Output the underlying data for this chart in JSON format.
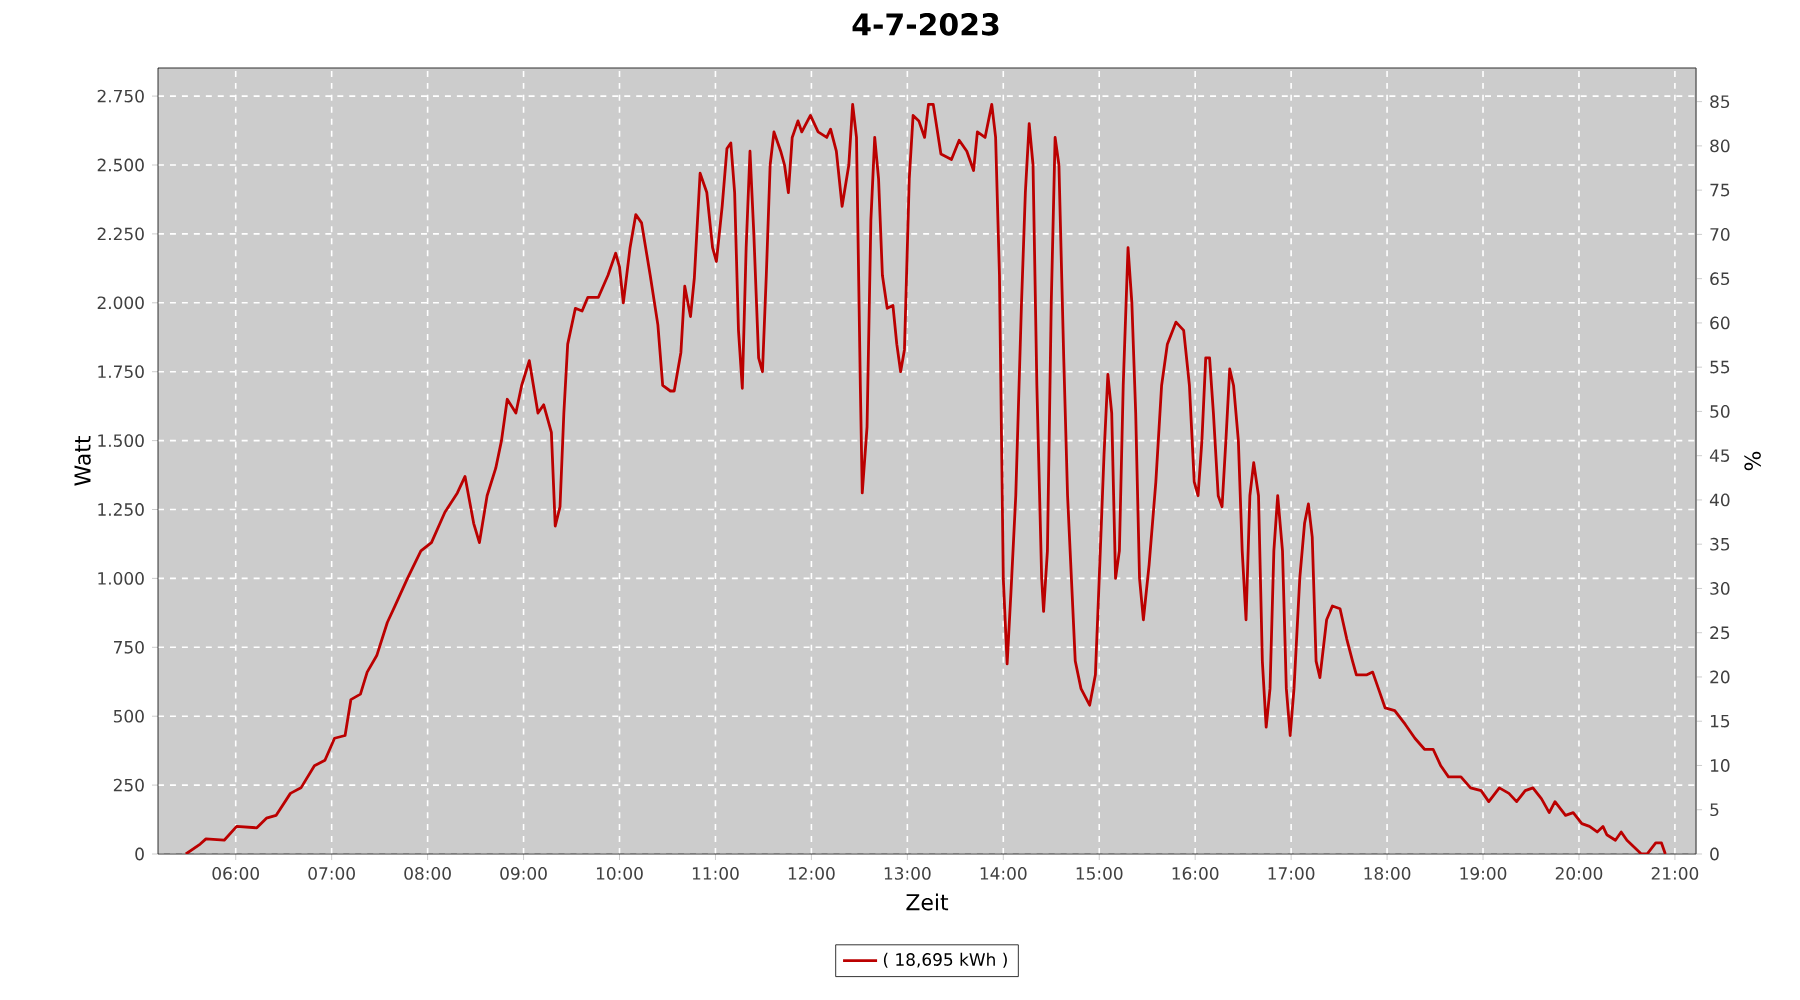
{
  "chart_data": {
    "type": "line",
    "title": "4-7-2023",
    "xlabel": "Zeit",
    "ylabel": "Watt",
    "y2label": "%",
    "x": [
      5.48,
      5.63,
      5.69,
      5.88,
      6.01,
      6.22,
      6.32,
      6.42,
      6.57,
      6.68,
      6.82,
      6.93,
      7.03,
      7.14,
      7.2,
      7.3,
      7.37,
      7.47,
      7.58,
      7.66,
      7.79,
      7.93,
      8.04,
      8.18,
      8.31,
      8.39,
      8.48,
      8.54,
      8.62,
      8.71,
      8.77,
      8.83,
      8.92,
      8.98,
      9.06,
      9.15,
      9.21,
      9.29,
      9.33,
      9.38,
      9.42,
      9.46,
      9.54,
      9.61,
      9.67,
      9.78,
      9.88,
      9.96,
      10.0,
      10.04,
      10.11,
      10.17,
      10.23,
      10.32,
      10.4,
      10.45,
      10.53,
      10.57,
      10.64,
      10.68,
      10.74,
      10.78,
      10.84,
      10.91,
      10.97,
      11.01,
      11.07,
      11.12,
      11.16,
      11.2,
      11.24,
      11.28,
      11.32,
      11.36,
      11.4,
      11.45,
      11.49,
      11.53,
      11.57,
      11.61,
      11.68,
      11.72,
      11.76,
      11.8,
      11.86,
      11.9,
      11.99,
      12.07,
      12.16,
      12.2,
      12.26,
      12.32,
      12.39,
      12.43,
      12.47,
      12.51,
      12.53,
      12.58,
      12.62,
      12.66,
      12.7,
      12.74,
      12.79,
      12.85,
      12.89,
      12.93,
      12.97,
      13.02,
      13.06,
      13.12,
      13.18,
      13.22,
      13.27,
      13.35,
      13.46,
      13.54,
      13.62,
      13.69,
      13.73,
      13.81,
      13.88,
      13.92,
      13.96,
      14.0,
      14.04,
      14.08,
      14.13,
      14.19,
      14.23,
      14.27,
      14.31,
      14.35,
      14.4,
      14.42,
      14.46,
      14.5,
      14.54,
      14.58,
      14.63,
      14.67,
      14.71,
      14.75,
      14.81,
      14.9,
      14.96,
      15.0,
      15.05,
      15.09,
      15.13,
      15.17,
      15.21,
      15.25,
      15.3,
      15.34,
      15.38,
      15.42,
      15.46,
      15.52,
      15.59,
      15.65,
      15.71,
      15.8,
      15.88,
      15.94,
      15.99,
      16.03,
      16.07,
      16.11,
      16.15,
      16.19,
      16.24,
      16.28,
      16.32,
      16.36,
      16.4,
      16.45,
      16.49,
      16.53,
      16.57,
      16.61,
      16.66,
      16.7,
      16.74,
      16.78,
      16.82,
      16.86,
      16.91,
      16.95,
      16.99,
      17.03,
      17.09,
      17.14,
      17.18,
      17.22,
      17.26,
      17.3,
      17.37,
      17.43,
      17.51,
      17.58,
      17.64,
      17.68,
      17.79,
      17.85,
      17.91,
      17.98,
      18.08,
      18.19,
      18.29,
      18.39,
      18.48,
      18.56,
      18.64,
      18.77,
      18.87,
      18.98,
      19.06,
      19.17,
      19.27,
      19.35,
      19.44,
      19.52,
      19.61,
      19.69,
      19.75,
      19.86,
      19.94,
      20.03,
      20.11,
      20.19,
      20.25,
      20.29,
      20.38,
      20.44,
      20.5,
      20.59,
      20.65,
      20.71,
      20.8,
      20.86,
      20.9
    ],
    "series": [
      {
        "name": "( 18,695 kWh )",
        "color": "#bb0000",
        "values": [
          0,
          36,
          55,
          50,
          100,
          95,
          130,
          140,
          220,
          240,
          320,
          340,
          420,
          430,
          560,
          580,
          660,
          720,
          840,
          900,
          1000,
          1100,
          1130,
          1240,
          1310,
          1370,
          1200,
          1130,
          1300,
          1400,
          1500,
          1650,
          1600,
          1700,
          1790,
          1600,
          1630,
          1530,
          1190,
          1260,
          1600,
          1850,
          1980,
          1970,
          2020,
          2020,
          2100,
          2180,
          2130,
          2000,
          2200,
          2320,
          2290,
          2100,
          1920,
          1700,
          1680,
          1680,
          1820,
          2060,
          1950,
          2090,
          2470,
          2400,
          2200,
          2150,
          2350,
          2560,
          2580,
          2400,
          1900,
          1690,
          2200,
          2550,
          2250,
          1800,
          1750,
          2100,
          2500,
          2620,
          2550,
          2500,
          2400,
          2600,
          2660,
          2620,
          2680,
          2620,
          2600,
          2630,
          2550,
          2350,
          2500,
          2720,
          2600,
          1700,
          1310,
          1550,
          2300,
          2600,
          2450,
          2100,
          1980,
          1990,
          1850,
          1750,
          1830,
          2450,
          2680,
          2660,
          2600,
          2720,
          2720,
          2540,
          2520,
          2590,
          2550,
          2480,
          2620,
          2600,
          2720,
          2600,
          2100,
          1000,
          690,
          950,
          1300,
          2000,
          2400,
          2650,
          2500,
          1700,
          1000,
          880,
          1100,
          2000,
          2600,
          2500,
          1800,
          1300,
          1000,
          700,
          600,
          540,
          650,
          1000,
          1450,
          1740,
          1600,
          1000,
          1100,
          1700,
          2200,
          2000,
          1600,
          1000,
          850,
          1050,
          1350,
          1700,
          1850,
          1930,
          1900,
          1700,
          1350,
          1300,
          1500,
          1800,
          1800,
          1600,
          1300,
          1260,
          1500,
          1760,
          1700,
          1500,
          1100,
          850,
          1300,
          1420,
          1300,
          700,
          460,
          600,
          1100,
          1300,
          1100,
          600,
          430,
          600,
          1000,
          1200,
          1270,
          1150,
          700,
          640,
          850,
          900,
          890,
          780,
          700,
          650,
          650,
          660,
          600,
          530,
          520,
          470,
          420,
          380,
          380,
          320,
          280,
          280,
          240,
          230,
          190,
          240,
          220,
          190,
          230,
          240,
          200,
          150,
          190,
          140,
          150,
          110,
          100,
          80,
          100,
          70,
          50,
          80,
          50,
          20,
          0,
          0,
          40,
          40,
          0
        ]
      }
    ],
    "xlim": [
      5.19,
      21.22
    ],
    "ylim": [
      0,
      2852
    ],
    "y2lim": [
      0,
      88.8
    ],
    "xticks": [
      {
        "value": 6,
        "label": "06:00"
      },
      {
        "value": 7,
        "label": "07:00"
      },
      {
        "value": 8,
        "label": "08:00"
      },
      {
        "value": 9,
        "label": "09:00"
      },
      {
        "value": 10,
        "label": "10:00"
      },
      {
        "value": 11,
        "label": "11:00"
      },
      {
        "value": 12,
        "label": "12:00"
      },
      {
        "value": 13,
        "label": "13:00"
      },
      {
        "value": 14,
        "label": "14:00"
      },
      {
        "value": 15,
        "label": "15:00"
      },
      {
        "value": 16,
        "label": "16:00"
      },
      {
        "value": 17,
        "label": "17:00"
      },
      {
        "value": 18,
        "label": "18:00"
      },
      {
        "value": 19,
        "label": "19:00"
      },
      {
        "value": 20,
        "label": "20:00"
      },
      {
        "value": 21,
        "label": "21:00"
      }
    ],
    "yticks": [
      0,
      250,
      500,
      750,
      {
        "value": 1000,
        "label": "1.000"
      },
      {
        "value": 1250,
        "label": "1.250"
      },
      {
        "value": 1500,
        "label": "1.500"
      },
      {
        "value": 1750,
        "label": "1.750"
      },
      {
        "value": 2000,
        "label": "2.000"
      },
      {
        "value": 2250,
        "label": "2.250"
      },
      {
        "value": 2500,
        "label": "2.500"
      },
      {
        "value": 2750,
        "label": "2.750"
      }
    ],
    "y2ticks": [
      0,
      5,
      10,
      15,
      20,
      25,
      30,
      35,
      40,
      45,
      50,
      55,
      60,
      65,
      70,
      75,
      80,
      85
    ],
    "grid": true,
    "legend": "bottom",
    "marker": "none",
    "line_style": "solid"
  }
}
